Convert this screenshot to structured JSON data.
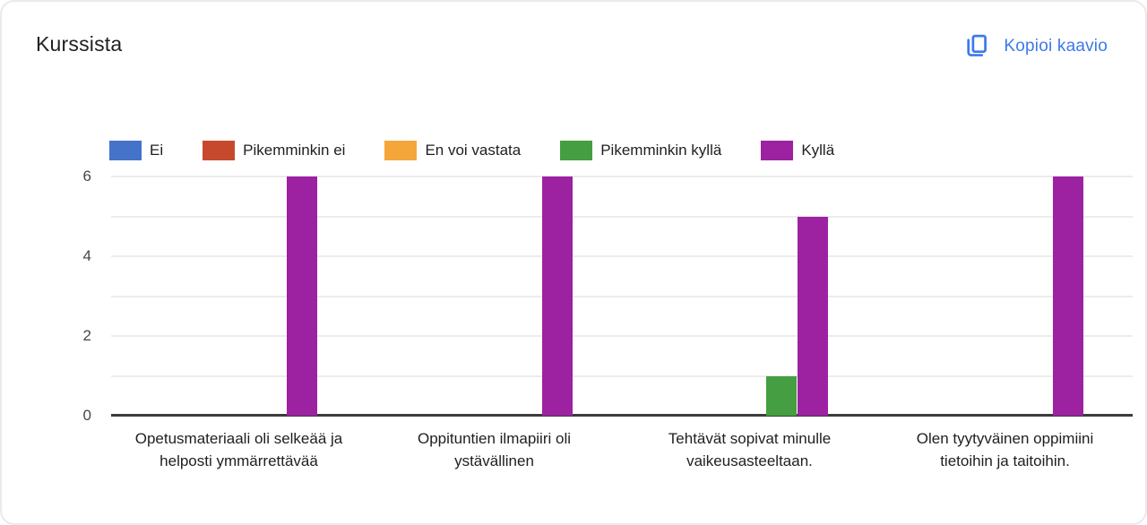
{
  "card": {
    "title": "Kurssista",
    "copy_button": {
      "label": "Kopioi kaavio",
      "icon": "copy-icon",
      "color": "#3d79e9"
    }
  },
  "chart_data": {
    "type": "bar",
    "title": "Kurssista",
    "categories": [
      "Opetusmateriaali oli selkeää ja helposti ymmärrettävää",
      "Oppituntien ilmapiiri oli ystävällinen",
      "Tehtävät sopivat minulle vaikeusasteeltaan.",
      "Olen tyytyväinen oppimiini tietoihin ja taitoihin."
    ],
    "series": [
      {
        "name": "Ei",
        "color": "#4473c9",
        "values": [
          0,
          0,
          0,
          0
        ]
      },
      {
        "name": "Pikemminkin ei",
        "color": "#c7492d",
        "values": [
          0,
          0,
          0,
          0
        ]
      },
      {
        "name": "En voi vastata",
        "color": "#f5a63b",
        "values": [
          0,
          0,
          0,
          0
        ]
      },
      {
        "name": "Pikemminkin kyllä",
        "color": "#459e41",
        "values": [
          0,
          0,
          1,
          0
        ]
      },
      {
        "name": "Kyllä",
        "color": "#9c22a1",
        "values": [
          6,
          6,
          5,
          6
        ]
      }
    ],
    "ylim": [
      0,
      6
    ],
    "yticks": [
      0,
      2,
      4,
      6
    ],
    "gridline_step": 1,
    "grid": true,
    "legend_position": "top",
    "xlabel": "",
    "ylabel": ""
  }
}
